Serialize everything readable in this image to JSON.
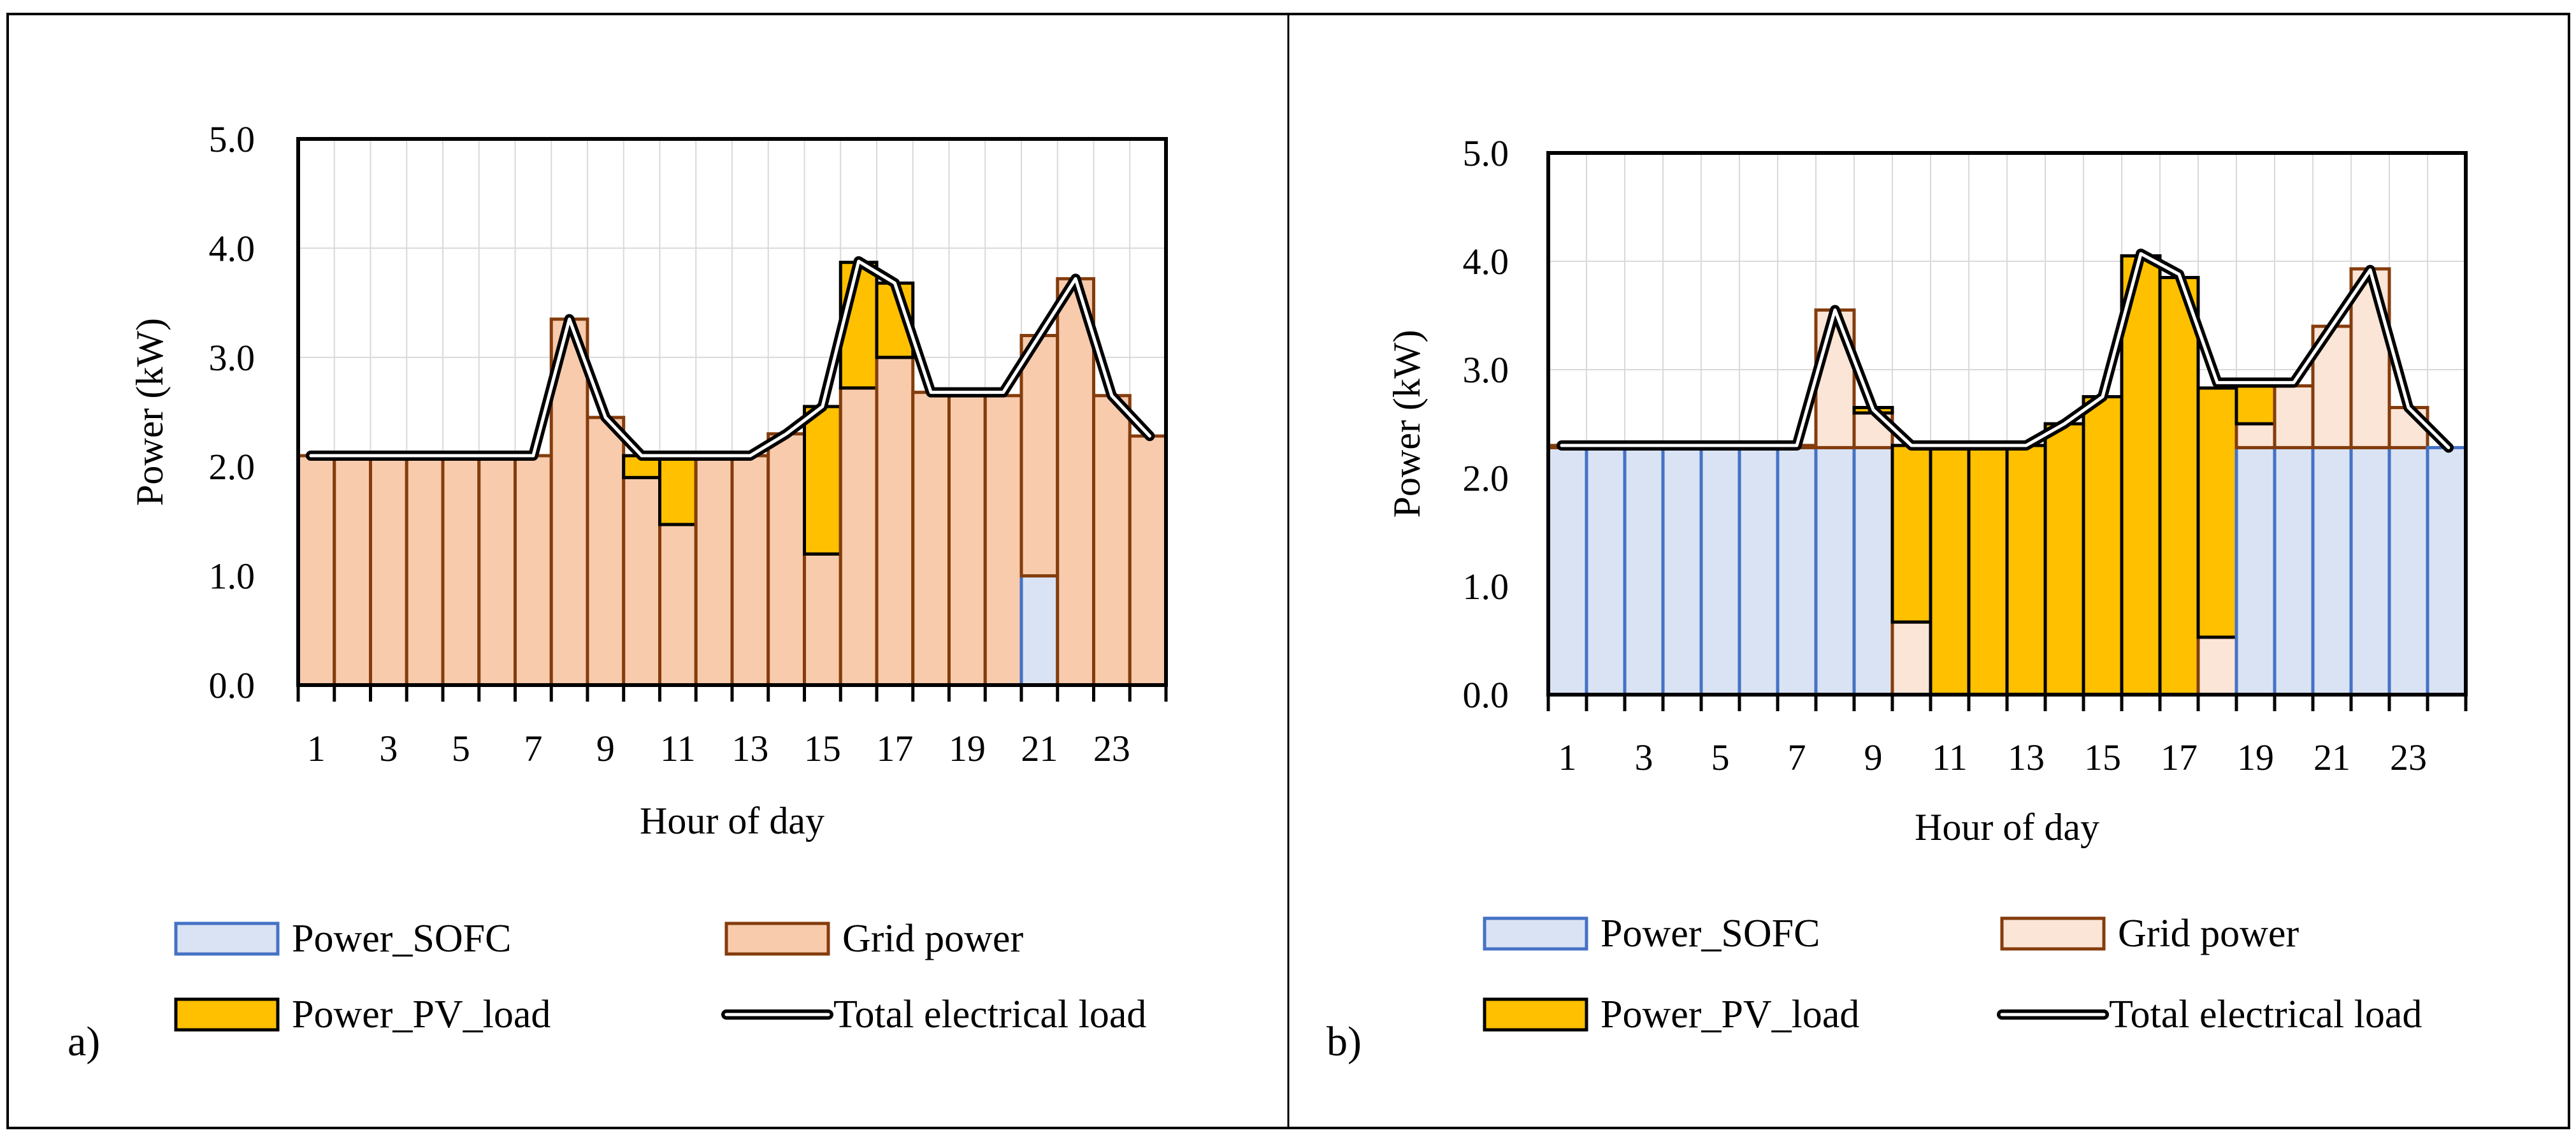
{
  "figure": {
    "panel_labels": [
      "a)",
      "b)"
    ]
  },
  "chart_data": [
    {
      "type": "bar",
      "stacked": true,
      "panel": "a)",
      "title": "",
      "xlabel": "Hour of day",
      "ylabel": "Power (kW)",
      "ylim": [
        0,
        5
      ],
      "yticks": [
        "0.0",
        "1.0",
        "2.0",
        "3.0",
        "4.0",
        "5.0"
      ],
      "xticks": [
        "1",
        "3",
        "5",
        "7",
        "9",
        "11",
        "13",
        "15",
        "17",
        "19",
        "21",
        "23"
      ],
      "categories": [
        1,
        2,
        3,
        4,
        5,
        6,
        7,
        8,
        9,
        10,
        11,
        12,
        13,
        14,
        15,
        16,
        17,
        18,
        19,
        20,
        21,
        22,
        23,
        24
      ],
      "grid": true,
      "legend": "bottom",
      "series": [
        {
          "name": "Power_SOFC",
          "color": "#dae3f3",
          "edge": "#4472c4",
          "values": [
            0,
            0,
            0,
            0,
            0,
            0,
            0,
            0,
            0,
            0,
            0,
            0,
            0,
            0,
            0,
            0,
            0,
            0,
            0,
            0,
            1.0,
            0,
            0,
            0
          ]
        },
        {
          "name": "Grid power",
          "color": "#f8cbad",
          "edge": "#843c0c",
          "values": [
            2.1,
            2.1,
            2.1,
            2.1,
            2.1,
            2.1,
            2.1,
            3.35,
            2.45,
            1.9,
            1.47,
            2.1,
            2.1,
            2.3,
            1.2,
            2.72,
            3.0,
            2.68,
            2.65,
            2.65,
            2.2,
            3.72,
            2.65,
            2.28
          ]
        },
        {
          "name": "Power_PV_load",
          "color": "#ffc000",
          "edge": "#000000",
          "values": [
            0,
            0,
            0,
            0,
            0,
            0,
            0,
            0,
            0,
            0.2,
            0.63,
            0,
            0,
            0,
            1.35,
            1.15,
            0.68,
            0,
            0,
            0,
            0,
            0,
            0,
            0
          ]
        }
      ],
      "line": {
        "name": "Total electrical load",
        "values": [
          2.1,
          2.1,
          2.1,
          2.1,
          2.1,
          2.1,
          2.1,
          3.35,
          2.45,
          2.1,
          2.1,
          2.1,
          2.1,
          2.3,
          2.55,
          3.88,
          3.68,
          2.68,
          2.68,
          2.68,
          3.2,
          3.72,
          2.65,
          2.28
        ]
      }
    },
    {
      "type": "bar",
      "stacked": true,
      "panel": "b)",
      "title": "",
      "xlabel": "Hour of day",
      "ylabel": "Power (kW)",
      "ylim": [
        0,
        5
      ],
      "yticks": [
        "0.0",
        "1.0",
        "2.0",
        "3.0",
        "4.0",
        "5.0"
      ],
      "xticks": [
        "1",
        "3",
        "5",
        "7",
        "9",
        "11",
        "13",
        "15",
        "17",
        "19",
        "21",
        "23"
      ],
      "categories": [
        1,
        2,
        3,
        4,
        5,
        6,
        7,
        8,
        9,
        10,
        11,
        12,
        13,
        14,
        15,
        16,
        17,
        18,
        19,
        20,
        21,
        22,
        23,
        24
      ],
      "grid": true,
      "legend": "bottom",
      "series": [
        {
          "name": "Power_SOFC",
          "color": "#dae3f3",
          "edge": "#4472c4",
          "values": [
            2.28,
            2.28,
            2.28,
            2.28,
            2.28,
            2.28,
            2.28,
            2.28,
            2.28,
            0,
            0,
            0,
            0,
            0,
            0,
            0,
            0,
            0,
            2.28,
            2.28,
            2.28,
            2.28,
            2.28,
            2.28
          ]
        },
        {
          "name": "Grid power",
          "color": "#fbe5d6",
          "edge": "#843c0c",
          "values": [
            0.02,
            0.02,
            0.02,
            0.02,
            0.02,
            0.02,
            0.02,
            1.27,
            0.32,
            0.67,
            0,
            0,
            0,
            0,
            0,
            0,
            0,
            0.53,
            0.22,
            0.57,
            1.12,
            1.65,
            0.37,
            0
          ]
        },
        {
          "name": "Power_PV_load",
          "color": "#ffc000",
          "edge": "#000000",
          "values": [
            0,
            0,
            0,
            0,
            0,
            0,
            0,
            0,
            0.05,
            1.63,
            2.3,
            2.3,
            2.3,
            2.5,
            2.75,
            4.05,
            3.85,
            2.3,
            0.35,
            0,
            0,
            0,
            0,
            0
          ]
        }
      ],
      "line": {
        "name": "Total electrical load",
        "values": [
          2.3,
          2.3,
          2.3,
          2.3,
          2.3,
          2.3,
          2.3,
          3.55,
          2.63,
          2.3,
          2.3,
          2.3,
          2.3,
          2.5,
          2.75,
          4.07,
          3.88,
          2.88,
          2.88,
          2.88,
          3.4,
          3.92,
          2.65,
          2.28
        ]
      }
    }
  ]
}
